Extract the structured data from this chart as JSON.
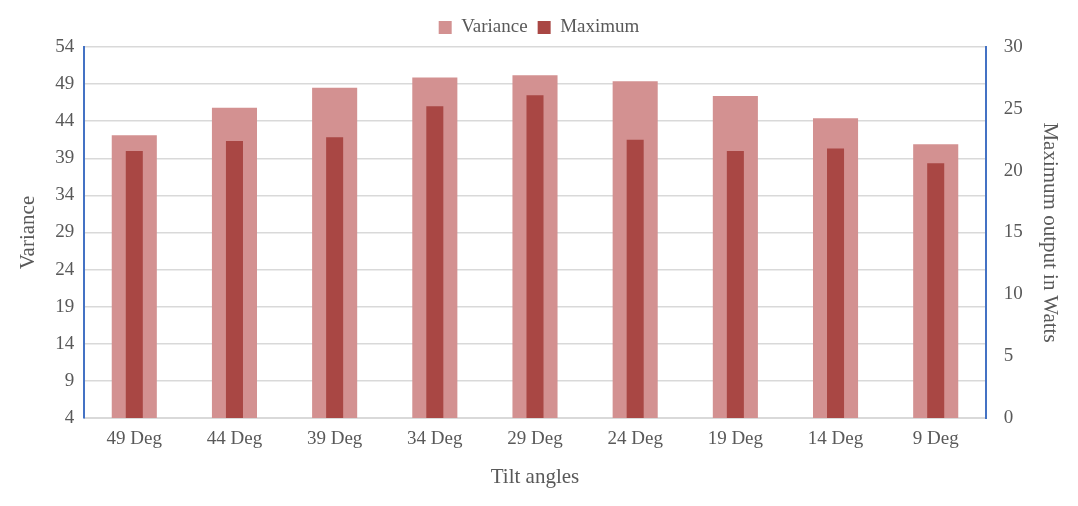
{
  "chart_data": {
    "type": "bar",
    "xlabel": "Tilt angles",
    "ylabel": "Variance",
    "y2label": "Maximum output in Watts",
    "categories": [
      "49 Deg",
      "44 Deg",
      "39 Deg",
      "34 Deg",
      "29 Deg",
      "24 Deg",
      "19 Deg",
      "14 Deg",
      "9 Deg"
    ],
    "series": [
      {
        "name": "Variance",
        "color": "#d39191",
        "values": [
          42.1,
          45.8,
          48.5,
          49.9,
          50.2,
          49.4,
          47.4,
          44.4,
          40.9
        ]
      },
      {
        "name": "Maximum",
        "color": "#a94744",
        "axis": "y2",
        "values": [
          21.6,
          22.4,
          22.7,
          25.2,
          26.1,
          22.5,
          21.6,
          21.8,
          20.6
        ]
      }
    ],
    "ylim": [
      4,
      54
    ],
    "yticks": [
      4,
      9,
      14,
      19,
      24,
      29,
      34,
      39,
      44,
      49,
      54
    ],
    "y2lim": [
      0,
      30
    ],
    "y2ticks": [
      0,
      5,
      10,
      15,
      20,
      25,
      30
    ],
    "grid": "y",
    "legend": "top"
  }
}
